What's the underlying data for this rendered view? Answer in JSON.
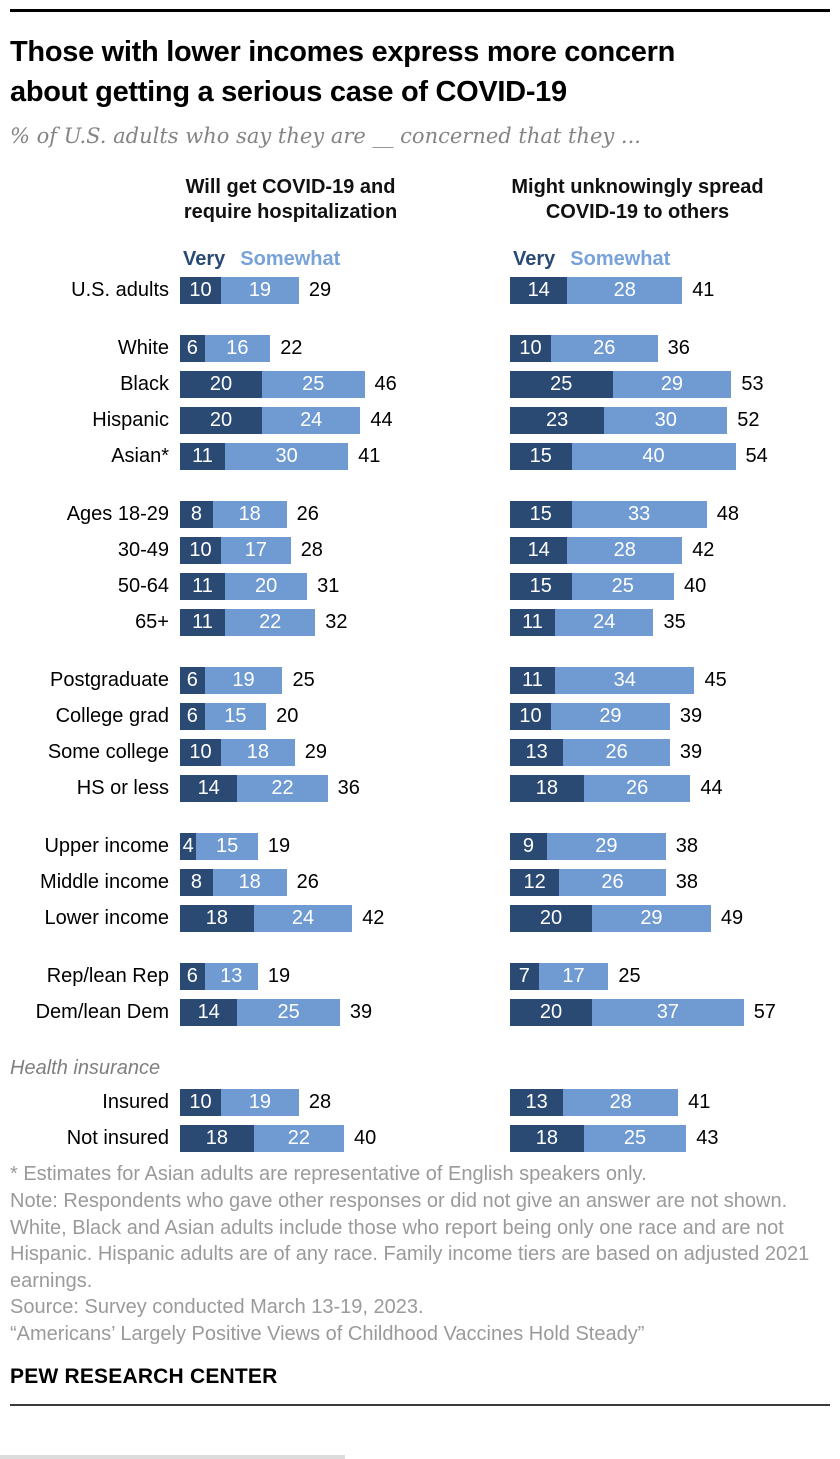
{
  "header": {
    "title_lines": [
      "Those with lower incomes express more concern",
      "about getting a serious case of COVID-19"
    ],
    "subtitle": "% of U.S. adults who say they are __ concerned that they ..."
  },
  "colors": {
    "very": "#2A4A74",
    "somewhat": "#6F9AD2",
    "somewhat_legend": "#78A2D9"
  },
  "chart_data": {
    "type": "bar",
    "stacked": true,
    "orientation": "horizontal",
    "value_unit": "percent",
    "series": [
      "Very",
      "Somewhat"
    ],
    "legend": {
      "very": "Very",
      "somewhat": "Somewhat"
    },
    "columns": {
      "left": {
        "title_lines": [
          "Will get COVID-19 and",
          "require hospitalization"
        ]
      },
      "right": {
        "title_lines": [
          "Might unknowingly spread",
          "COVID-19 to others"
        ]
      }
    },
    "groups": [
      {
        "section": null,
        "rows": [
          {
            "label": "U.S. adults",
            "left": {
              "very": 10,
              "somewhat": 19,
              "total": 29
            },
            "right": {
              "very": 14,
              "somewhat": 28,
              "total": 41
            }
          }
        ]
      },
      {
        "section": null,
        "rows": [
          {
            "label": "White",
            "left": {
              "very": 6,
              "somewhat": 16,
              "total": 22
            },
            "right": {
              "very": 10,
              "somewhat": 26,
              "total": 36
            }
          },
          {
            "label": "Black",
            "left": {
              "very": 20,
              "somewhat": 25,
              "total": 46
            },
            "right": {
              "very": 25,
              "somewhat": 29,
              "total": 53
            }
          },
          {
            "label": "Hispanic",
            "left": {
              "very": 20,
              "somewhat": 24,
              "total": 44
            },
            "right": {
              "very": 23,
              "somewhat": 30,
              "total": 52
            }
          },
          {
            "label": "Asian*",
            "left": {
              "very": 11,
              "somewhat": 30,
              "total": 41
            },
            "right": {
              "very": 15,
              "somewhat": 40,
              "total": 54
            }
          }
        ]
      },
      {
        "section": null,
        "rows": [
          {
            "label": "Ages 18-29",
            "left": {
              "very": 8,
              "somewhat": 18,
              "total": 26
            },
            "right": {
              "very": 15,
              "somewhat": 33,
              "total": 48
            }
          },
          {
            "label": "30-49",
            "left": {
              "very": 10,
              "somewhat": 17,
              "total": 28
            },
            "right": {
              "very": 14,
              "somewhat": 28,
              "total": 42
            }
          },
          {
            "label": "50-64",
            "left": {
              "very": 11,
              "somewhat": 20,
              "total": 31
            },
            "right": {
              "very": 15,
              "somewhat": 25,
              "total": 40
            }
          },
          {
            "label": "65+",
            "left": {
              "very": 11,
              "somewhat": 22,
              "total": 32
            },
            "right": {
              "very": 11,
              "somewhat": 24,
              "total": 35
            }
          }
        ]
      },
      {
        "section": null,
        "rows": [
          {
            "label": "Postgraduate",
            "left": {
              "very": 6,
              "somewhat": 19,
              "total": 25
            },
            "right": {
              "very": 11,
              "somewhat": 34,
              "total": 45
            }
          },
          {
            "label": "College grad",
            "left": {
              "very": 6,
              "somewhat": 15,
              "total": 20
            },
            "right": {
              "very": 10,
              "somewhat": 29,
              "total": 39
            }
          },
          {
            "label": "Some college",
            "left": {
              "very": 10,
              "somewhat": 18,
              "total": 29
            },
            "right": {
              "very": 13,
              "somewhat": 26,
              "total": 39
            }
          },
          {
            "label": "HS or less",
            "left": {
              "very": 14,
              "somewhat": 22,
              "total": 36
            },
            "right": {
              "very": 18,
              "somewhat": 26,
              "total": 44
            }
          }
        ]
      },
      {
        "section": null,
        "rows": [
          {
            "label": "Upper income",
            "left": {
              "very": 4,
              "somewhat": 15,
              "total": 19
            },
            "right": {
              "very": 9,
              "somewhat": 29,
              "total": 38
            }
          },
          {
            "label": "Middle income",
            "left": {
              "very": 8,
              "somewhat": 18,
              "total": 26
            },
            "right": {
              "very": 12,
              "somewhat": 26,
              "total": 38
            }
          },
          {
            "label": "Lower income",
            "left": {
              "very": 18,
              "somewhat": 24,
              "total": 42
            },
            "right": {
              "very": 20,
              "somewhat": 29,
              "total": 49
            }
          }
        ]
      },
      {
        "section": null,
        "rows": [
          {
            "label": "Rep/lean Rep",
            "left": {
              "very": 6,
              "somewhat": 13,
              "total": 19
            },
            "right": {
              "very": 7,
              "somewhat": 17,
              "total": 25
            }
          },
          {
            "label": "Dem/lean Dem",
            "left": {
              "very": 14,
              "somewhat": 25,
              "total": 39
            },
            "right": {
              "very": 20,
              "somewhat": 37,
              "total": 57
            }
          }
        ]
      },
      {
        "section": "Health insurance",
        "rows": [
          {
            "label": "Insured",
            "left": {
              "very": 10,
              "somewhat": 19,
              "total": 28
            },
            "right": {
              "very": 13,
              "somewhat": 28,
              "total": 41
            }
          },
          {
            "label": "Not insured",
            "left": {
              "very": 18,
              "somewhat": 22,
              "total": 40
            },
            "right": {
              "very": 18,
              "somewhat": 25,
              "total": 43
            }
          }
        ]
      }
    ]
  },
  "notes": {
    "asterisk": "* Estimates for Asian adults are representative of English speakers only.",
    "note": "Note: Respondents who gave other responses or did not give an answer are not shown. White, Black and Asian adults include those who report being only one race and are not Hispanic. Hispanic adults are of any race. Family income tiers are based on adjusted 2021 earnings.",
    "source": "Source: Survey conducted March 13-19, 2023.",
    "report": "“Americans’ Largely Positive Views of Childhood Vaccines Hold Steady”"
  },
  "brand": "PEW RESEARCH CENTER"
}
